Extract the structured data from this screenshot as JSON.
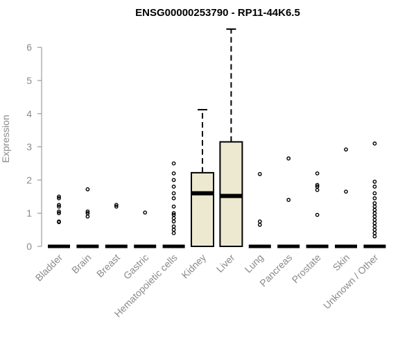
{
  "chart_data": {
    "type": "box",
    "title": "ENSG00000253790 - RP11-44K6.5",
    "ylabel": "Expression",
    "ylim": [
      0,
      6.5
    ],
    "yticks": [
      0,
      1,
      2,
      3,
      4,
      5,
      6
    ],
    "box_fill": "#ede8d0",
    "categories": [
      "Bladder",
      "Brain",
      "Breast",
      "Gastric",
      "Hematopoietic cells",
      "Kidney",
      "Liver",
      "Lung",
      "Pancreas",
      "Prostate",
      "Skin",
      "Unknown / Other"
    ],
    "boxes": [
      {
        "category": "Bladder",
        "min": 0,
        "q1": 0,
        "median": 0,
        "q3": 0,
        "max": 0,
        "outliers": [
          0.73,
          0.75,
          1.0,
          1.05,
          1.2,
          1.25,
          1.45,
          1.5
        ]
      },
      {
        "category": "Brain",
        "min": 0,
        "q1": 0,
        "median": 0,
        "q3": 0,
        "max": 0,
        "outliers": [
          0.9,
          1.0,
          1.05,
          1.72
        ]
      },
      {
        "category": "Breast",
        "min": 0,
        "q1": 0,
        "median": 0,
        "q3": 0,
        "max": 0,
        "outliers": [
          1.2,
          1.25
        ]
      },
      {
        "category": "Gastric",
        "min": 0,
        "q1": 0,
        "median": 0,
        "q3": 0,
        "max": 0,
        "outliers": [
          1.02
        ]
      },
      {
        "category": "Hematopoietic cells",
        "min": 0,
        "q1": 0,
        "median": 0,
        "q3": 0,
        "max": 0,
        "outliers": [
          0.4,
          0.5,
          0.6,
          0.75,
          0.85,
          0.95,
          1.0,
          1.2,
          1.45,
          1.6,
          1.8,
          2.0,
          2.2,
          2.5
        ]
      },
      {
        "category": "Kidney",
        "min": 0,
        "q1": 0,
        "median": 1.6,
        "q3": 2.22,
        "max": 4.12,
        "outliers": []
      },
      {
        "category": "Liver",
        "min": 0,
        "q1": 0,
        "median": 1.52,
        "q3": 3.15,
        "max": 6.55,
        "outliers": []
      },
      {
        "category": "Lung",
        "min": 0,
        "q1": 0,
        "median": 0,
        "q3": 0,
        "max": 0,
        "outliers": [
          0.65,
          0.75,
          2.18
        ]
      },
      {
        "category": "Pancreas",
        "min": 0,
        "q1": 0,
        "median": 0,
        "q3": 0,
        "max": 0,
        "outliers": [
          1.4,
          2.65
        ]
      },
      {
        "category": "Prostate",
        "min": 0,
        "q1": 0,
        "median": 0,
        "q3": 0,
        "max": 0,
        "outliers": [
          0.95,
          1.7,
          1.8,
          1.85,
          2.2
        ]
      },
      {
        "category": "Skin",
        "min": 0,
        "q1": 0,
        "median": 0,
        "q3": 0,
        "max": 0,
        "outliers": [
          1.65,
          2.92
        ]
      },
      {
        "category": "Unknown / Other",
        "min": 0,
        "q1": 0,
        "median": 0,
        "q3": 0,
        "max": 0,
        "outliers": [
          0.3,
          0.4,
          0.5,
          0.6,
          0.7,
          0.8,
          0.9,
          1.0,
          1.1,
          1.2,
          1.3,
          1.45,
          1.6,
          1.8,
          1.95,
          3.1
        ]
      }
    ]
  }
}
